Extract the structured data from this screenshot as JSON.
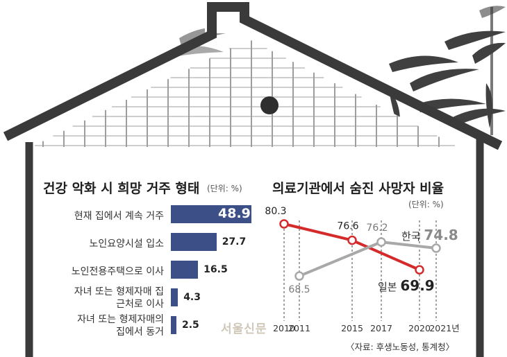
{
  "chart_data": [
    {
      "type": "bar",
      "orientation": "horizontal",
      "title": "건강 악화 시 희망 거주 형태",
      "unit": "(단위: %)",
      "categories": [
        [
          "현재 집에서 계속 거주"
        ],
        [
          "노인요양시설 입소"
        ],
        [
          "노인전용주택으로 이사"
        ],
        [
          "자녀 또는 형제자매 집",
          "근처로 이사"
        ],
        [
          "자녀 또는 형제자매의",
          "집에서 동거"
        ]
      ],
      "values": [
        48.9,
        27.7,
        16.5,
        4.3,
        2.5
      ],
      "value_labels": [
        "48.9",
        "27.7",
        "16.5",
        "4.3",
        "2.5"
      ],
      "color": "#3d4f87"
    },
    {
      "type": "line",
      "title": "의료기관에서 숨진 사망자 비율",
      "unit": "(단위: %)",
      "x_labels": [
        "2010",
        "2011",
        "2015",
        "2017",
        "2020",
        "2021년"
      ],
      "x": [
        2010,
        2011,
        2015,
        2017,
        2020,
        2021
      ],
      "series": [
        {
          "name": "일본",
          "color": "#d42a2a",
          "x": [
            2010,
            2015,
            2020
          ],
          "values": [
            80.3,
            76.6,
            69.9
          ],
          "value_labels": [
            "80.3",
            "76.6",
            "69.9"
          ]
        },
        {
          "name": "한국",
          "color": "#a8a8a8",
          "x": [
            2011,
            2017,
            2021
          ],
          "values": [
            68.5,
            76.2,
            74.8
          ],
          "value_labels": [
            "68.5",
            "76.2",
            "74.8"
          ]
        }
      ]
    }
  ],
  "watermark": "서울신문",
  "source": "〈자료: 후생노동성, 통계청〉",
  "colors": {
    "house_outline": "#3a3a3a",
    "roof_window": "#9d9d9d",
    "bamboo": "#2b2b2b"
  }
}
